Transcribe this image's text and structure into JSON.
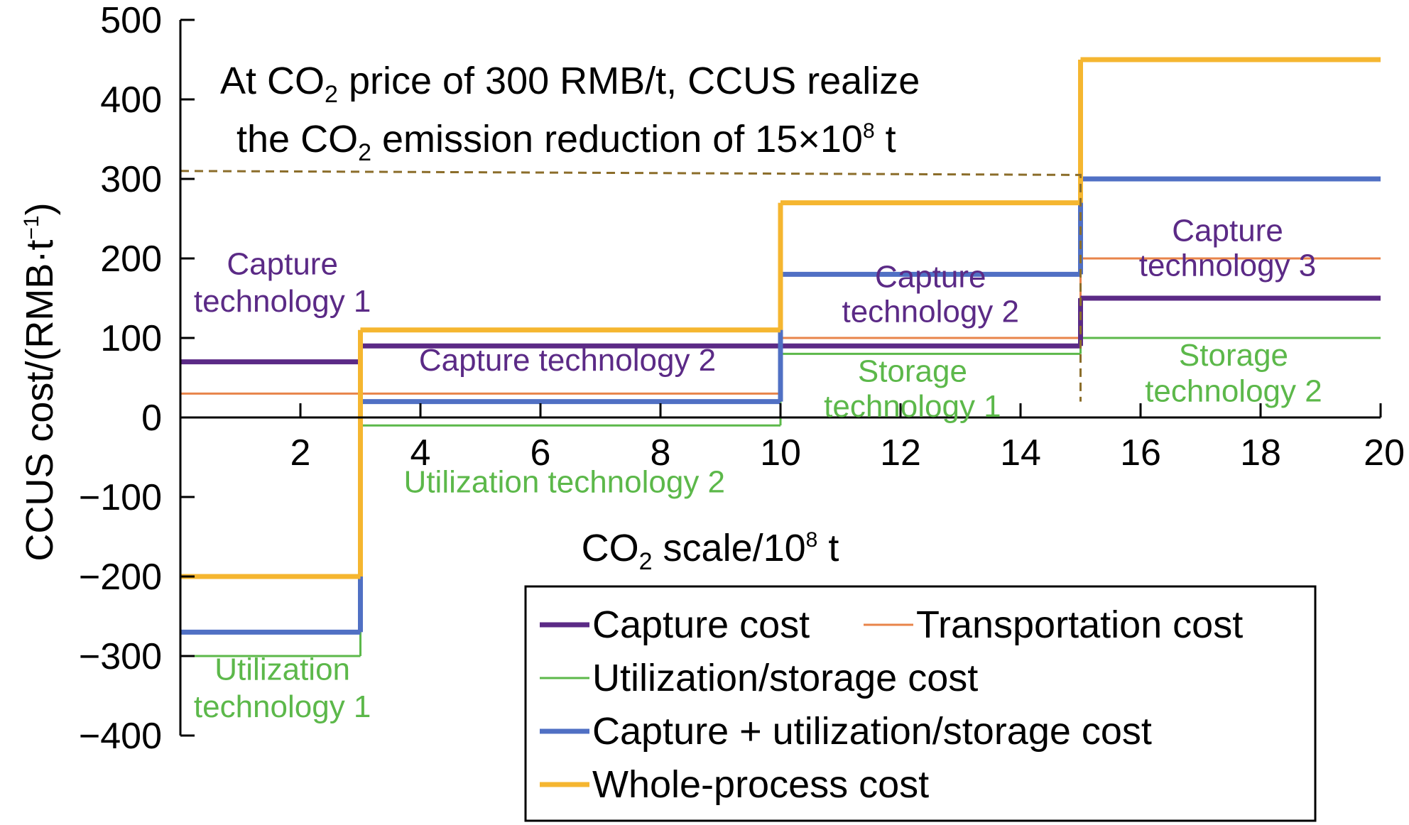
{
  "chart_data": {
    "type": "line",
    "step": true,
    "title": "",
    "xlabel": {
      "before": "CO",
      "sub": "2",
      "middle": " scale/10",
      "sup": "8",
      "after": " t"
    },
    "ylabel": {
      "before": "CCUS cost/(RMB·t",
      "sup": "−1",
      "after": ")"
    },
    "xlim": [
      0,
      20
    ],
    "ylim": [
      -400,
      500
    ],
    "xticks": [
      2,
      4,
      6,
      8,
      10,
      12,
      14,
      16,
      18,
      20
    ],
    "xtick_labels": [
      "2",
      "4",
      "6",
      "8",
      "10",
      "12",
      "14",
      "16",
      "18",
      "20"
    ],
    "yticks": [
      -400,
      -300,
      -200,
      -100,
      0,
      100,
      200,
      300,
      400,
      500
    ],
    "ytick_labels": [
      "−400",
      "−300",
      "−200",
      "−100",
      "0",
      "100",
      "200",
      "300",
      "400",
      "500"
    ],
    "grid": false,
    "legend_position": "bottom-right",
    "series": [
      {
        "key": "transport",
        "name": "Transportation cost",
        "color": "#e8844a",
        "steps": [
          {
            "x0": 0,
            "x1": 3,
            "y": 30
          },
          {
            "x0": 3,
            "x1": 10,
            "y": 30
          },
          {
            "x0": 10,
            "x1": 15,
            "y": 100
          },
          {
            "x0": 15,
            "x1": 20,
            "y": 200
          }
        ]
      },
      {
        "key": "util",
        "name": "Utilization/storage cost",
        "color": "#5cb84a",
        "steps": [
          {
            "x0": 0,
            "x1": 3,
            "y": -300
          },
          {
            "x0": 3,
            "x1": 10,
            "y": -10
          },
          {
            "x0": 10,
            "x1": 15,
            "y": 80
          },
          {
            "x0": 15,
            "x1": 20,
            "y": 100
          }
        ]
      },
      {
        "key": "capture",
        "name": "Capture cost",
        "color": "#5b2a86",
        "steps": [
          {
            "x0": 0,
            "x1": 3,
            "y": 70
          },
          {
            "x0": 3,
            "x1": 10,
            "y": 90
          },
          {
            "x0": 10,
            "x1": 15,
            "y": 90
          },
          {
            "x0": 15,
            "x1": 20,
            "y": 150
          }
        ]
      },
      {
        "key": "capture_util",
        "name": "Capture + utilization/storage cost",
        "color": "#5070c4",
        "steps": [
          {
            "x0": 0,
            "x1": 3,
            "y": -270
          },
          {
            "x0": 3,
            "x1": 10,
            "y": 20
          },
          {
            "x0": 10,
            "x1": 15,
            "y": 180
          },
          {
            "x0": 15,
            "x1": 20,
            "y": 300
          }
        ]
      },
      {
        "key": "whole",
        "name": "Whole-process cost",
        "color": "#f5b630",
        "steps": [
          {
            "x0": 0,
            "x1": 3,
            "y": -200
          },
          {
            "x0": 3,
            "x1": 10,
            "y": 110
          },
          {
            "x0": 10,
            "x1": 15,
            "y": 270
          },
          {
            "x0": 15,
            "x1": 20,
            "y": 450
          }
        ]
      }
    ],
    "reference_line": {
      "color": "#8b6d2a",
      "points": [
        {
          "x": 0,
          "y": 310
        },
        {
          "x": 15,
          "y": 305
        },
        {
          "x": 15,
          "y": 20
        }
      ]
    },
    "annotations": [
      {
        "key": "cap1",
        "text": "Capture",
        "color": "#5b2a86",
        "x": 1.7,
        "y": 180
      },
      {
        "key": "cap1b",
        "text": "technology 1",
        "color": "#5b2a86",
        "x": 1.7,
        "y": 133
      },
      {
        "key": "cap2a",
        "text": "Capture technology 2",
        "color": "#5b2a86",
        "x": 6.45,
        "y": 59
      },
      {
        "key": "cap2b",
        "text": "Capture",
        "color": "#5b2a86",
        "x": 12.5,
        "y": 164
      },
      {
        "key": "cap2c",
        "text": "technology 2",
        "color": "#5b2a86",
        "x": 12.5,
        "y": 120
      },
      {
        "key": "cap3a",
        "text": "Capture",
        "color": "#5b2a86",
        "x": 17.45,
        "y": 222
      },
      {
        "key": "cap3b",
        "text": "technology 3",
        "color": "#5b2a86",
        "x": 17.45,
        "y": 178
      },
      {
        "key": "st1a",
        "text": "Storage",
        "color": "#5cb84a",
        "x": 12.2,
        "y": 45
      },
      {
        "key": "st1b",
        "text": "technology 1",
        "color": "#5cb84a",
        "x": 12.2,
        "y": 1
      },
      {
        "key": "st2a",
        "text": "Storage",
        "color": "#5cb84a",
        "x": 17.55,
        "y": 65
      },
      {
        "key": "st2b",
        "text": "technology 2",
        "color": "#5cb84a",
        "x": 17.55,
        "y": 20
      },
      {
        "key": "ut2",
        "text": "Utilization technology 2",
        "color": "#5cb84a",
        "x": 6.4,
        "y": -94
      },
      {
        "key": "ut1a",
        "text": "Utilization",
        "color": "#5cb84a",
        "x": 1.7,
        "y": -330
      },
      {
        "key": "ut1b",
        "text": "technology 1",
        "color": "#5cb84a",
        "x": 1.7,
        "y": -377
      }
    ],
    "headline": {
      "line1": {
        "before": "At CO",
        "sub": "2",
        "after": " price of 300 RMB/t, CCUS realize"
      },
      "line2": {
        "before": "the CO",
        "sub": "2",
        "middle": " emission reduction of 15×10",
        "sup": "8",
        "after": " t"
      }
    },
    "legend": [
      {
        "key": "capture",
        "label": "Capture cost",
        "color": "#5b2a86",
        "thick": true
      },
      {
        "key": "transport",
        "label": "Transportation cost",
        "color": "#e8844a",
        "thick": false
      },
      {
        "key": "util",
        "label": "Utilization/storage cost",
        "color": "#5cb84a",
        "thick": false
      },
      {
        "key": "capture_util",
        "label": "Capture + utilization/storage cost",
        "color": "#5070c4",
        "thick": true
      },
      {
        "key": "whole",
        "label": "Whole-process cost",
        "color": "#f5b630",
        "thick": true
      }
    ]
  }
}
